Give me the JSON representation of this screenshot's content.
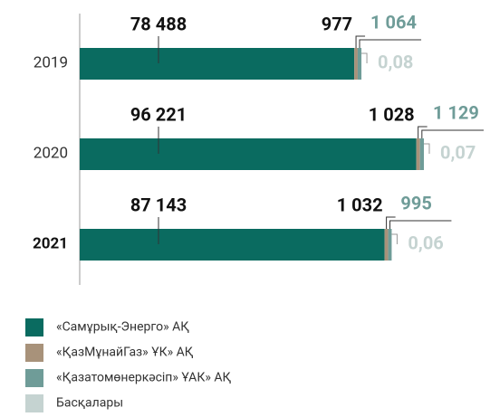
{
  "chart_data": {
    "type": "stacked_bar_horizontal",
    "categories": [
      "2019",
      "2020",
      "2021"
    ],
    "series": [
      {
        "name": "«Самұрық-Энерго» АҚ",
        "color": "#0a6b60",
        "values": [
          78488,
          96221,
          87143
        ],
        "value_labels": [
          "78 488",
          "96 221",
          "87 143"
        ]
      },
      {
        "name": "«ҚазМұнайГаз» ҰК» АҚ",
        "color": "#a8927a",
        "values": [
          977,
          1028,
          1032
        ],
        "value_labels": [
          "977",
          "1 028",
          "1 032"
        ]
      },
      {
        "name": "«Қазатомөнеркәсіп» ҰАК» АҚ",
        "color": "#6f9c98",
        "values": [
          1064,
          1129,
          995
        ],
        "value_labels": [
          "1 064",
          "1 129",
          "995"
        ]
      },
      {
        "name": "Басқалары",
        "color": "#c5d3d1",
        "values": [
          0.08,
          0.07,
          0.06
        ],
        "value_labels": [
          "0,08",
          "0,07",
          "0,06"
        ]
      }
    ]
  }
}
